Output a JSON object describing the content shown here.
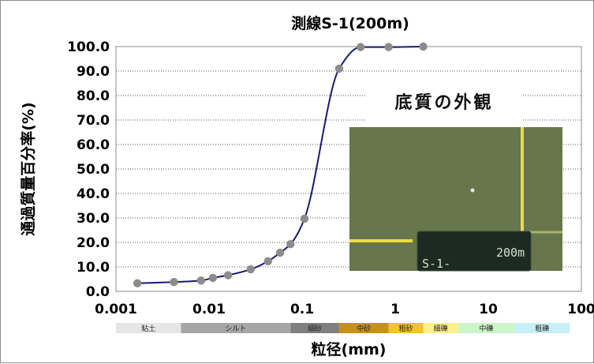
{
  "chart_data": {
    "type": "line",
    "title": "測線S-1(200m)",
    "xlabel": "粒径(mm)",
    "ylabel": "通過質量百分率(%)",
    "x_scale": "log",
    "xlim": [
      0.001,
      100
    ],
    "ylim": [
      0,
      100
    ],
    "x_ticks": [
      "0.001",
      "0.01",
      "0.1",
      "1",
      "10",
      "100"
    ],
    "y_ticks": [
      "0.0",
      "10.0",
      "20.0",
      "30.0",
      "40.0",
      "50.0",
      "60.0",
      "70.0",
      "80.0",
      "90.0",
      "100.0"
    ],
    "grid": "horizontal dotted",
    "line_color": "#1a1a6e",
    "marker_color": "#8c8c8c",
    "series": [
      {
        "x": [
          0.0017,
          0.0042,
          0.0082,
          0.011,
          0.016,
          0.028,
          0.043,
          0.058,
          0.075,
          0.106,
          0.25,
          0.425,
          0.85,
          2.0
        ],
        "y": [
          3.3,
          3.8,
          4.4,
          5.5,
          6.6,
          9.0,
          12.3,
          15.8,
          19.3,
          29.7,
          91.0,
          99.8,
          99.8,
          100.0
        ]
      }
    ],
    "classification_bands": [
      {
        "label": "粘土",
        "from": 0.001,
        "to": 0.005,
        "color": "#e6e6e6"
      },
      {
        "label": "シルト",
        "from": 0.005,
        "to": 0.075,
        "color": "#a6a6a6"
      },
      {
        "label": "細砂",
        "from": 0.075,
        "to": 0.25,
        "color": "#7f7f7f"
      },
      {
        "label": "中砂",
        "from": 0.25,
        "to": 0.85,
        "color": "#c69214"
      },
      {
        "label": "粗砂",
        "from": 0.85,
        "to": 2.0,
        "color": "#f2c230"
      },
      {
        "label": "細礫",
        "from": 2.0,
        "to": 4.75,
        "color": "#ffee8c"
      },
      {
        "label": "中礫",
        "from": 4.75,
        "to": 19.0,
        "color": "#ccf5c8"
      },
      {
        "label": "粗礫",
        "from": 19.0,
        "to": 75.0,
        "color": "#c8f0f8"
      }
    ]
  },
  "photo": {
    "caption": "底質の外観",
    "sign_left": "S-1-",
    "sign_right": "200m"
  }
}
